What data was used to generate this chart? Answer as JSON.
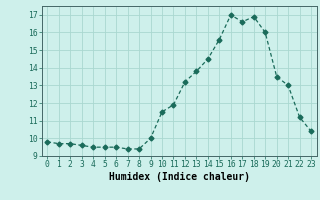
{
  "x": [
    0,
    1,
    2,
    3,
    4,
    5,
    6,
    7,
    8,
    9,
    10,
    11,
    12,
    13,
    14,
    15,
    16,
    17,
    18,
    19,
    20,
    21,
    22,
    23
  ],
  "y": [
    9.8,
    9.7,
    9.7,
    9.6,
    9.5,
    9.5,
    9.5,
    9.4,
    9.4,
    10.0,
    11.5,
    11.9,
    13.2,
    13.8,
    14.5,
    15.6,
    17.0,
    16.6,
    16.9,
    16.0,
    13.5,
    13.0,
    11.2,
    10.4
  ],
  "line_color": "#1a6b5a",
  "marker": "D",
  "marker_size": 2.5,
  "bg_color": "#cef0eb",
  "grid_color": "#aad8d0",
  "xlabel": "Humidex (Indice chaleur)",
  "xlim": [
    -0.5,
    23.5
  ],
  "ylim": [
    9.0,
    17.5
  ],
  "yticks": [
    9,
    10,
    11,
    12,
    13,
    14,
    15,
    16,
    17
  ],
  "xticks": [
    0,
    1,
    2,
    3,
    4,
    5,
    6,
    7,
    8,
    9,
    10,
    11,
    12,
    13,
    14,
    15,
    16,
    17,
    18,
    19,
    20,
    21,
    22,
    23
  ],
  "tick_fontsize": 5.8,
  "label_fontsize": 7.0
}
